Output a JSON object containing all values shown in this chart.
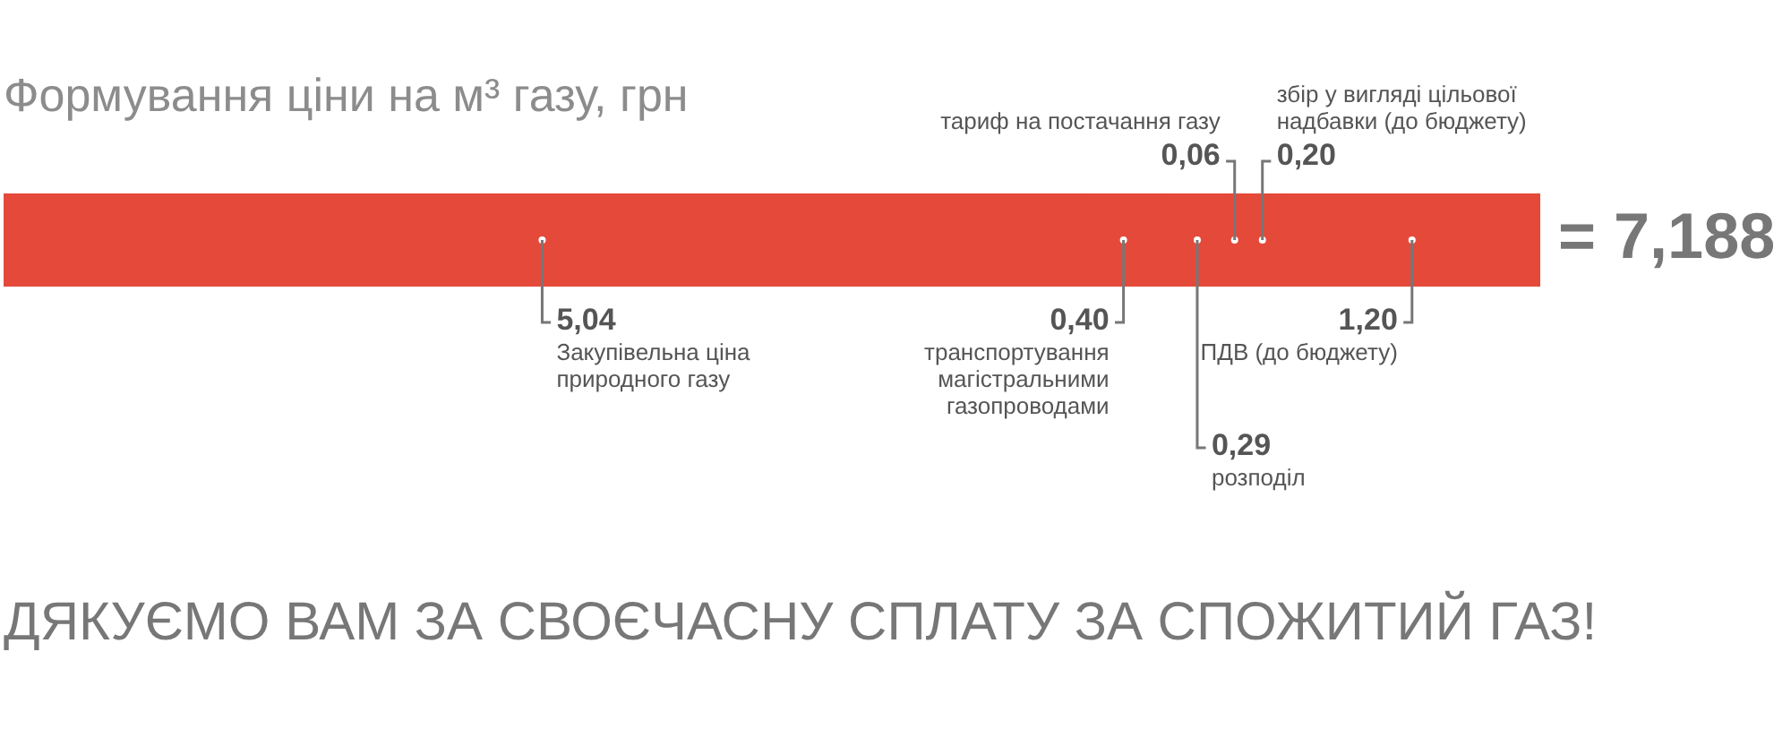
{
  "chart_data": {
    "type": "bar",
    "orientation": "horizontal",
    "stacked": true,
    "title": "Формування ціни на м³ газу, грн",
    "categories": [
      null
    ],
    "series": [
      {
        "name": "Закупівельна ціна природного газу",
        "color": "#e5493a",
        "values": [
          5.04
        ],
        "value_labels": [
          "5,04"
        ]
      },
      {
        "name": "транспортування магістральними газопроводами",
        "color": "#e5493a",
        "values": [
          0.4
        ],
        "value_labels": [
          "0,40"
        ]
      },
      {
        "name": "розподіл",
        "color": "#e5493a",
        "values": [
          0.29
        ],
        "value_labels": [
          "0,29"
        ]
      },
      {
        "name": "тариф на постачання газу",
        "color": "#e5493a",
        "values": [
          0.06
        ],
        "value_labels": [
          "0,06"
        ]
      },
      {
        "name": "збір у вигляді цільової надбавки (до бюджету)",
        "color": "#e5493a",
        "values": [
          0.2
        ],
        "value_labels": [
          "0,20"
        ]
      },
      {
        "name": "ПДВ (до бюджету)",
        "color": "#e5493a",
        "values": [
          1.2
        ],
        "value_labels": [
          "1,20"
        ]
      }
    ],
    "totals": [
      "= 7,188"
    ],
    "annotations": [
      "ДЯКУЄМО ВАМ ЗА СВОЄЧАСНУ СПЛАТУ ЗА СПОЖИТИЙ ГАЗ!"
    ],
    "legend": false
  }
}
